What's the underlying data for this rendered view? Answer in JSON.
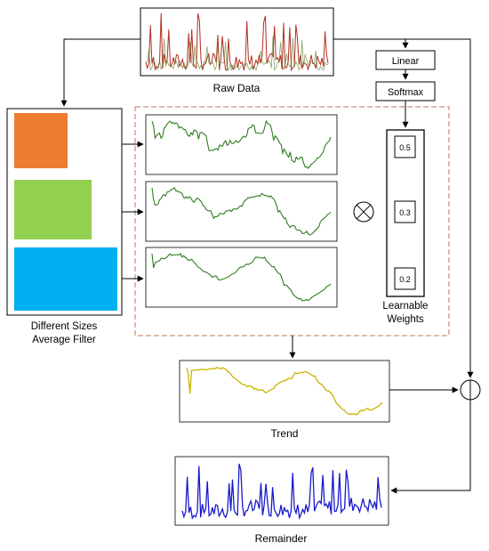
{
  "labels": {
    "raw_data": "Raw Data",
    "linear": "Linear",
    "softmax": "Softmax",
    "filters_line1": "Different Sizes",
    "filters_line2": "Average Filter",
    "weights_line1": "Learnable",
    "weights_line2": "Weights",
    "trend": "Trend",
    "remainder": "Remainder"
  },
  "weights": [
    "0.5",
    "0.3",
    "0.2"
  ],
  "colors": {
    "raw": "#b03020",
    "raw_alt": "#5a7d2a",
    "smoothed": "#2e7d1e",
    "trend": "#c8b400",
    "remainder": "#1a1acc",
    "filter_small": "#ee7d31",
    "filter_medium": "#92d050",
    "filter_large": "#00b0f0",
    "dashed_box": "#c0735a"
  },
  "operators": {
    "weighting": "multiply-circle-icon",
    "sum": "sum-circle-icon"
  }
}
